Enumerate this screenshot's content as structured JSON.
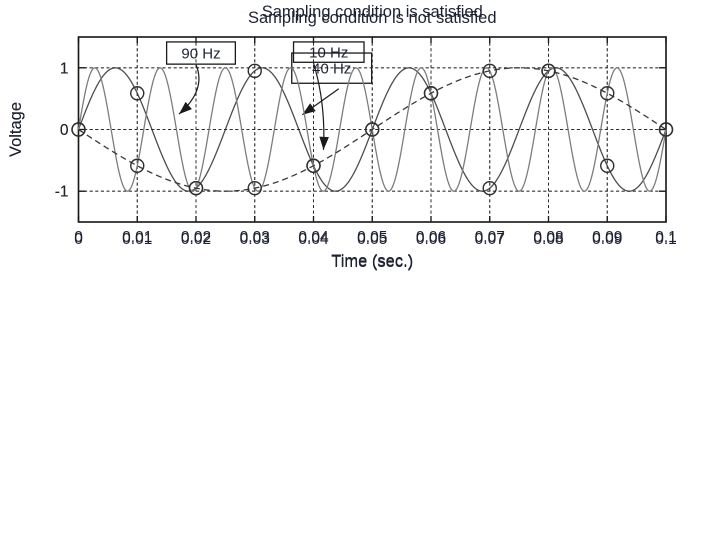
{
  "figure": {
    "background": "#ffffff",
    "text_color": "#1e2233",
    "axis_color": "#1a1a1a",
    "grid_color": "#2b2b2b",
    "marker_color": "#2f2f2f"
  },
  "chart_data": [
    {
      "type": "line",
      "title": "Sampling condition is satisfied",
      "xlabel": "Time (sec.)",
      "ylabel": "Voltage",
      "xlim": [
        0,
        0.1
      ],
      "ylim": [
        -1.5,
        1.5
      ],
      "grid": true,
      "xticks": [
        0,
        0.01,
        0.02,
        0.03,
        0.04,
        0.05,
        0.06,
        0.07,
        0.08,
        0.09,
        0.1
      ],
      "xtick_labels": [
        "0",
        "0.01",
        "0.02",
        "0.03",
        "0.04",
        "0.05",
        "0.06",
        "0.07",
        "0.08",
        "0.09",
        "0.1"
      ],
      "yticks": [
        1,
        0,
        -1
      ],
      "ytick_labels": [
        "1",
        "0",
        "-1"
      ],
      "series": [
        {
          "name": "40-hz-sine-wave",
          "kind": "sine",
          "frequency_hz": 40,
          "amplitude": 1,
          "line_style": "solid",
          "color": "#4d4d4d"
        },
        {
          "name": "sample-points-100hz",
          "kind": "markers",
          "marker": "circle",
          "color": "#2f2f2f",
          "x": [
            0,
            0.01,
            0.02,
            0.03,
            0.04,
            0.05,
            0.06,
            0.07,
            0.08,
            0.09,
            0.1
          ],
          "y": [
            0,
            0.588,
            -0.951,
            0.951,
            -0.588,
            0,
            0.588,
            -0.951,
            0.951,
            -0.588,
            0
          ]
        }
      ],
      "annotations": [
        {
          "label": "40 Hz",
          "box_x": [
            0.0363,
            0.0499
          ],
          "box_y": [
            0.75,
            1.24
          ],
          "arrow_from": [
            0.0443,
            0.66
          ],
          "arrow_ctrl": [
            0.0412,
            0.45
          ],
          "arrow_to": [
            0.0381,
            0.24
          ]
        }
      ]
    },
    {
      "type": "line",
      "title": "Sampling condition is not satisfied",
      "xlabel": "Time (sec.)",
      "ylabel": "Voltage",
      "xlim": [
        0,
        0.1
      ],
      "ylim": [
        -1.5,
        1.5
      ],
      "grid": true,
      "xticks": [
        0,
        0.01,
        0.02,
        0.03,
        0.04,
        0.05,
        0.06,
        0.07,
        0.08,
        0.09,
        0.1
      ],
      "xtick_labels": [
        "0",
        "0.01",
        "0.02",
        "0.03",
        "0.04",
        "0.05",
        "0.06",
        "0.07",
        "0.08",
        "0.09",
        "0.1"
      ],
      "yticks": [
        1,
        0,
        -1
      ],
      "ytick_labels": [
        "1",
        "0",
        "-1"
      ],
      "series": [
        {
          "name": "90-hz-sine-wave",
          "kind": "sine",
          "frequency_hz": 90,
          "amplitude": 1,
          "line_style": "solid",
          "color": "#7d7d7d"
        },
        {
          "name": "10-hz-aliased-wave",
          "kind": "sine",
          "frequency_hz": 10,
          "amplitude": -1,
          "line_style": "dashed",
          "color": "#383838"
        },
        {
          "name": "sample-points-100hz",
          "kind": "markers",
          "marker": "circle",
          "color": "#2f2f2f",
          "x": [
            0,
            0.01,
            0.02,
            0.03,
            0.04,
            0.05,
            0.06,
            0.07,
            0.08,
            0.09,
            0.1
          ],
          "y": [
            0,
            -0.588,
            -0.951,
            -0.951,
            -0.588,
            0,
            0.588,
            0.951,
            0.951,
            0.588,
            0
          ]
        }
      ],
      "annotations": [
        {
          "label": "90 Hz",
          "box_x": [
            0.015,
            0.0267
          ],
          "box_y": [
            1.06,
            1.42
          ],
          "arrow_from": [
            0.02,
            1.05
          ],
          "arrow_ctrl": [
            0.0218,
            0.64
          ],
          "arrow_to": [
            0.0171,
            0.25
          ]
        },
        {
          "label": "10 Hz",
          "box_x": [
            0.0366,
            0.0486
          ],
          "box_y": [
            1.09,
            1.42
          ],
          "arrow_from": [
            0.04,
            1.08
          ],
          "arrow_ctrl": [
            0.0421,
            0.42
          ],
          "arrow_to": [
            0.0417,
            -0.33
          ]
        }
      ]
    }
  ]
}
